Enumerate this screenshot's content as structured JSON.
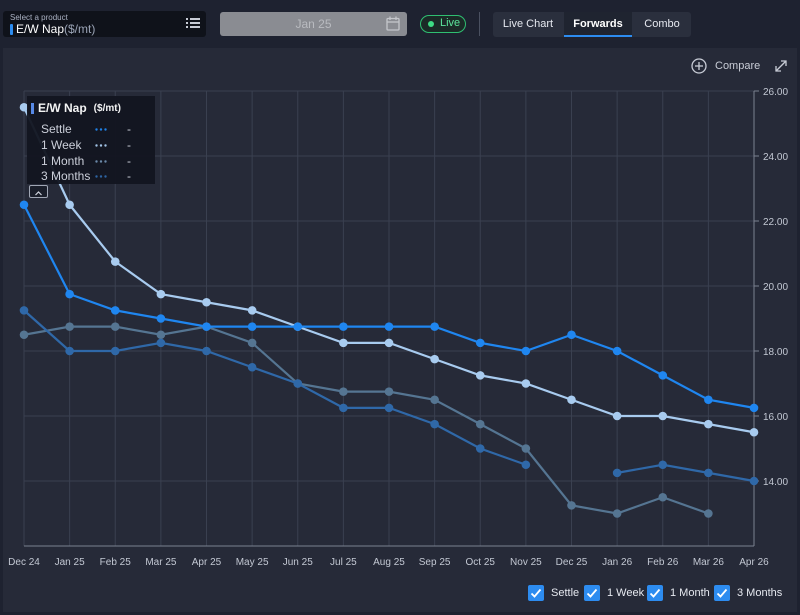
{
  "header": {
    "product_caption": "Select a product",
    "product_name": "E/W Nap",
    "product_unit": "($/mt)",
    "date_value": "Jan 25",
    "live_label": "Live",
    "tabs": [
      {
        "label": "Live Chart",
        "active": false
      },
      {
        "label": "Forwards",
        "active": true
      },
      {
        "label": "Combo",
        "active": false
      }
    ]
  },
  "toolbar": {
    "compare_label": "Compare"
  },
  "tooltip": {
    "title": "E/W Nap",
    "unit": "($/mt)",
    "rows": [
      {
        "label": "Settle",
        "value": "-"
      },
      {
        "label": "1 Week",
        "value": "-"
      },
      {
        "label": "1 Month",
        "value": "-"
      },
      {
        "label": "3 Months",
        "value": "-"
      }
    ]
  },
  "legend": [
    "Settle",
    "1 Week",
    "1 Month",
    "3 Months"
  ],
  "colors": {
    "settle": "#1f86f0",
    "week": "#a8cbef",
    "month": "#557592",
    "months3": "#2f68a8",
    "accent": "#2d8cf0",
    "live": "#3ddc84"
  },
  "chart_data": {
    "type": "line",
    "x": [
      "Dec 24",
      "Jan 25",
      "Feb 25",
      "Mar 25",
      "Apr 25",
      "May 25",
      "Jun 25",
      "Jul 25",
      "Aug 25",
      "Sep 25",
      "Oct 25",
      "Nov 25",
      "Dec 25",
      "Jan 26",
      "Feb 26",
      "Mar 26",
      "Apr 26"
    ],
    "ylim": [
      12,
      26
    ],
    "yticks": [
      "14.00",
      "16.00",
      "18.00",
      "20.00",
      "22.00",
      "24.00",
      "26.00"
    ],
    "ytick_values": [
      14,
      16,
      18,
      20,
      22,
      24,
      26
    ],
    "series": [
      {
        "name": "Settle",
        "key": "settle",
        "values": [
          22.5,
          19.75,
          19.25,
          19.0,
          18.75,
          18.75,
          18.75,
          18.75,
          18.75,
          18.75,
          18.25,
          18.0,
          18.5,
          18.0,
          17.25,
          16.5,
          16.25
        ]
      },
      {
        "name": "1 Week",
        "key": "week",
        "values": [
          25.5,
          22.5,
          20.75,
          19.75,
          19.5,
          19.25,
          18.75,
          18.25,
          18.25,
          17.75,
          17.25,
          17.0,
          16.5,
          16.0,
          16.0,
          15.75,
          15.5
        ]
      },
      {
        "name": "1 Month",
        "key": "month",
        "values": [
          18.5,
          18.75,
          18.75,
          18.5,
          18.75,
          18.25,
          17.0,
          16.75,
          16.75,
          16.5,
          15.75,
          15.0,
          13.25,
          13.0,
          13.5,
          13.0,
          null
        ]
      },
      {
        "name": "3 Months",
        "key": "months3",
        "values": [
          19.25,
          18.0,
          18.0,
          18.25,
          18.0,
          17.5,
          17.0,
          16.25,
          16.25,
          15.75,
          15.0,
          14.5,
          null,
          14.25,
          14.5,
          14.25,
          14.0
        ]
      }
    ],
    "grid": true,
    "legend_position": "bottom-right"
  }
}
